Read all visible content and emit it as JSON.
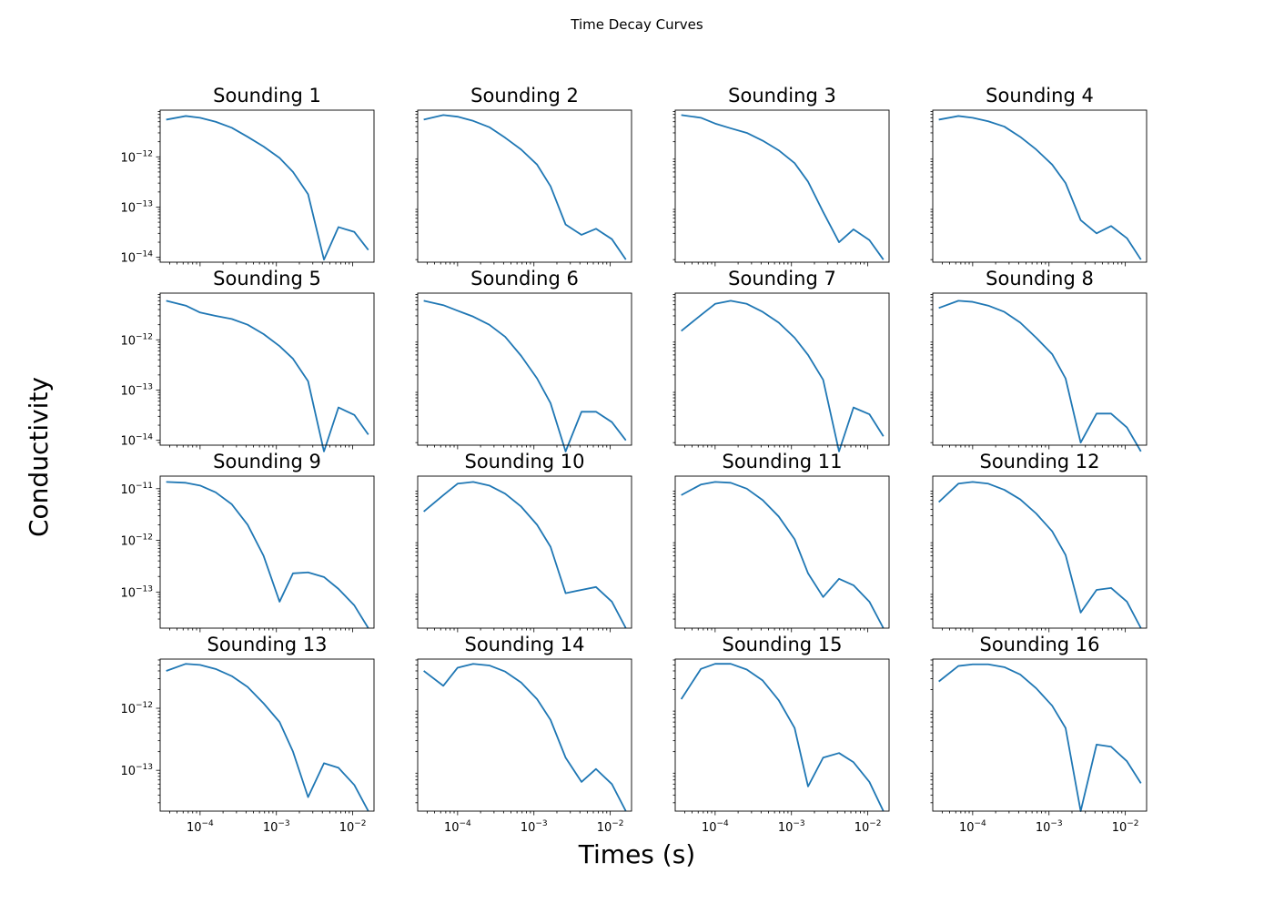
{
  "figure": {
    "title": "Time Decay Curves",
    "xlabel": "Times (s)",
    "ylabel": "Conductivity"
  },
  "line_color": "#1f77b4",
  "x_times": [
    3.6e-05,
    6.5e-05,
    0.0001,
    0.00016,
    0.00026,
    0.00042,
    0.00068,
    0.0011,
    0.00165,
    0.0026,
    0.0042,
    0.0065,
    0.0105,
    0.016
  ],
  "x_tick_values": [
    0.0001,
    0.001,
    0.01
  ],
  "x_tick_labels": [
    "10−4",
    "10−3",
    "10−2"
  ],
  "chart_data": [
    {
      "type": "line",
      "title": "Sounding 1",
      "xlim": [
        3e-05,
        0.019
      ],
      "ylim": [
        8e-15,
        8.5e-12
      ],
      "log_x": true,
      "log_y": true,
      "y_tick_values": [
        1e-12,
        1e-13,
        1e-14
      ],
      "y_tick_labels": [
        "10−12",
        "10−13",
        "10−14"
      ],
      "values": [
        5.5e-12,
        6.5e-12,
        6e-12,
        5e-12,
        3.8e-12,
        2.5e-12,
        1.6e-12,
        9.5e-13,
        5e-13,
        1.8e-13,
        9e-15,
        4e-14,
        3.2e-14,
        1.4e-14
      ]
    },
    {
      "type": "line",
      "title": "Sounding 2",
      "xlim": [
        3e-05,
        0.019
      ],
      "ylim": [
        8e-15,
        8.5e-12
      ],
      "log_x": true,
      "log_y": true,
      "y_tick_values": [],
      "y_tick_labels": [],
      "values": [
        5.5e-12,
        6.8e-12,
        6.3e-12,
        5.2e-12,
        3.9e-12,
        2.4e-12,
        1.4e-12,
        7e-13,
        2.6e-13,
        4.5e-14,
        2.8e-14,
        3.7e-14,
        2.3e-14,
        9e-15
      ]
    },
    {
      "type": "line",
      "title": "Sounding 3",
      "xlim": [
        3e-05,
        0.019
      ],
      "ylim": [
        8e-15,
        8.5e-12
      ],
      "log_x": true,
      "log_y": true,
      "y_tick_values": [],
      "y_tick_labels": [],
      "values": [
        6.8e-12,
        6e-12,
        4.6e-12,
        3.7e-12,
        3e-12,
        2.1e-12,
        1.35e-12,
        7.5e-13,
        3.2e-13,
        8e-14,
        2e-14,
        3.6e-14,
        2.2e-14,
        9e-15
      ]
    },
    {
      "type": "line",
      "title": "Sounding 4",
      "xlim": [
        3e-05,
        0.019
      ],
      "ylim": [
        8e-15,
        8.5e-12
      ],
      "log_x": true,
      "log_y": true,
      "y_tick_values": [],
      "y_tick_labels": [],
      "values": [
        5.5e-12,
        6.5e-12,
        6e-12,
        5.1e-12,
        4e-12,
        2.5e-12,
        1.4e-12,
        7e-13,
        3e-13,
        5.5e-14,
        3e-14,
        4.2e-14,
        2.4e-14,
        9e-15
      ]
    },
    {
      "type": "line",
      "title": "Sounding 5",
      "xlim": [
        3e-05,
        0.019
      ],
      "ylim": [
        8e-15,
        8.5e-12
      ],
      "log_x": true,
      "log_y": true,
      "y_tick_values": [
        1e-12,
        1e-13,
        1e-14
      ],
      "y_tick_labels": [
        "10−12",
        "10−13",
        "10−14"
      ],
      "values": [
        6e-12,
        4.8e-12,
        3.5e-12,
        3e-12,
        2.6e-12,
        2e-12,
        1.3e-12,
        7.5e-13,
        4.2e-13,
        1.5e-13,
        6e-15,
        4.5e-14,
        3.2e-14,
        1.3e-14
      ]
    },
    {
      "type": "line",
      "title": "Sounding 6",
      "xlim": [
        3e-05,
        0.019
      ],
      "ylim": [
        8e-15,
        8.5e-12
      ],
      "log_x": true,
      "log_y": true,
      "y_tick_values": [],
      "y_tick_labels": [],
      "values": [
        6e-12,
        4.9e-12,
        3.8e-12,
        2.9e-12,
        2e-12,
        1.15e-12,
        4.8e-13,
        1.7e-13,
        5.5e-14,
        6e-15,
        3.7e-14,
        3.7e-14,
        2.3e-14,
        1e-14
      ]
    },
    {
      "type": "line",
      "title": "Sounding 7",
      "xlim": [
        3e-05,
        0.019
      ],
      "ylim": [
        8e-15,
        8.5e-12
      ],
      "log_x": true,
      "log_y": true,
      "y_tick_values": [],
      "y_tick_labels": [],
      "values": [
        1.5e-12,
        3.1e-12,
        5.2e-12,
        6e-12,
        5.2e-12,
        3.6e-12,
        2.2e-12,
        1.1e-12,
        5e-13,
        1.6e-13,
        6e-15,
        4.5e-14,
        3.3e-14,
        1.2e-14
      ]
    },
    {
      "type": "line",
      "title": "Sounding 8",
      "xlim": [
        3e-05,
        0.019
      ],
      "ylim": [
        8e-15,
        8.5e-12
      ],
      "log_x": true,
      "log_y": true,
      "y_tick_values": [],
      "y_tick_labels": [],
      "values": [
        4.3e-12,
        6e-12,
        5.7e-12,
        4.8e-12,
        3.6e-12,
        2.2e-12,
        1.1e-12,
        5.2e-13,
        1.7e-13,
        9e-15,
        3.4e-14,
        3.4e-14,
        1.8e-14,
        6e-15
      ]
    },
    {
      "type": "line",
      "title": "Sounding 9",
      "xlim": [
        3e-05,
        0.019
      ],
      "ylim": [
        2e-14,
        1.75e-11
      ],
      "log_x": true,
      "log_y": true,
      "y_tick_values": [
        1e-11,
        1e-12,
        1e-13
      ],
      "y_tick_labels": [
        "10−11",
        "10−12",
        "10−13"
      ],
      "values": [
        1.35e-11,
        1.3e-11,
        1.15e-11,
        8.5e-12,
        5e-12,
        2e-12,
        5e-13,
        6.5e-14,
        2.3e-13,
        2.4e-13,
        1.95e-13,
        1.15e-13,
        5.5e-14,
        2e-14
      ]
    },
    {
      "type": "line",
      "title": "Sounding 10",
      "xlim": [
        3e-05,
        0.019
      ],
      "ylim": [
        2e-14,
        1.75e-11
      ],
      "log_x": true,
      "log_y": true,
      "y_tick_values": [],
      "y_tick_labels": [],
      "values": [
        3.6e-12,
        7.5e-12,
        1.25e-11,
        1.35e-11,
        1.15e-11,
        8e-12,
        4.5e-12,
        2e-12,
        7.5e-13,
        9.5e-14,
        1.1e-13,
        1.25e-13,
        6.5e-14,
        2e-14
      ]
    },
    {
      "type": "line",
      "title": "Sounding 11",
      "xlim": [
        3e-05,
        0.019
      ],
      "ylim": [
        2e-14,
        1.75e-11
      ],
      "log_x": true,
      "log_y": true,
      "y_tick_values": [],
      "y_tick_labels": [],
      "values": [
        7.5e-12,
        1.2e-11,
        1.35e-11,
        1.3e-11,
        1e-11,
        6e-12,
        2.9e-12,
        1.05e-12,
        2.3e-13,
        8e-14,
        1.8e-13,
        1.35e-13,
        6.5e-14,
        2e-14
      ]
    },
    {
      "type": "line",
      "title": "Sounding 12",
      "xlim": [
        3e-05,
        0.019
      ],
      "ylim": [
        2e-14,
        1.75e-11
      ],
      "log_x": true,
      "log_y": true,
      "y_tick_values": [],
      "y_tick_labels": [],
      "values": [
        5.5e-12,
        1.25e-11,
        1.35e-11,
        1.25e-11,
        9.5e-12,
        6.2e-12,
        3.3e-12,
        1.5e-12,
        5.2e-13,
        4e-14,
        1.1e-13,
        1.2e-13,
        6.5e-14,
        2e-14
      ]
    },
    {
      "type": "line",
      "title": "Sounding 13",
      "xlim": [
        3e-05,
        0.019
      ],
      "ylim": [
        2.2e-14,
        6.2e-12
      ],
      "log_x": true,
      "log_y": true,
      "y_tick_values": [
        1e-12,
        1e-13
      ],
      "y_tick_labels": [
        "10−12",
        "10−13"
      ],
      "values": [
        4e-12,
        5.2e-12,
        5e-12,
        4.3e-12,
        3.3e-12,
        2.2e-12,
        1.2e-12,
        6e-13,
        2e-13,
        3.7e-14,
        1.3e-13,
        1.1e-13,
        5.8e-14,
        2.2e-14
      ]
    },
    {
      "type": "line",
      "title": "Sounding 14",
      "xlim": [
        3e-05,
        0.019
      ],
      "ylim": [
        2.2e-14,
        6.2e-12
      ],
      "log_x": true,
      "log_y": true,
      "y_tick_values": [],
      "y_tick_labels": [],
      "values": [
        4e-12,
        2.3e-12,
        4.5e-12,
        5.2e-12,
        4.9e-12,
        3.9e-12,
        2.6e-12,
        1.4e-12,
        6.5e-13,
        1.6e-13,
        6.5e-14,
        1.05e-13,
        6e-14,
        2.2e-14
      ]
    },
    {
      "type": "line",
      "title": "Sounding 15",
      "xlim": [
        3e-05,
        0.019
      ],
      "ylim": [
        2.2e-14,
        6.2e-12
      ],
      "log_x": true,
      "log_y": true,
      "y_tick_values": [],
      "y_tick_labels": [],
      "values": [
        1.4e-12,
        4.3e-12,
        5.2e-12,
        5.2e-12,
        4.2e-12,
        2.8e-12,
        1.35e-12,
        4.8e-13,
        5.5e-14,
        1.6e-13,
        1.9e-13,
        1.35e-13,
        6.5e-14,
        2.2e-14
      ]
    },
    {
      "type": "line",
      "title": "Sounding 16",
      "xlim": [
        3e-05,
        0.019
      ],
      "ylim": [
        2.2e-14,
        6.2e-12
      ],
      "log_x": true,
      "log_y": true,
      "y_tick_values": [],
      "y_tick_labels": [],
      "values": [
        2.7e-12,
        4.8e-12,
        5.1e-12,
        5.1e-12,
        4.6e-12,
        3.5e-12,
        2.1e-12,
        1.1e-12,
        4.8e-13,
        2.2e-14,
        2.6e-13,
        2.4e-13,
        1.4e-13,
        6.2e-14
      ]
    }
  ]
}
